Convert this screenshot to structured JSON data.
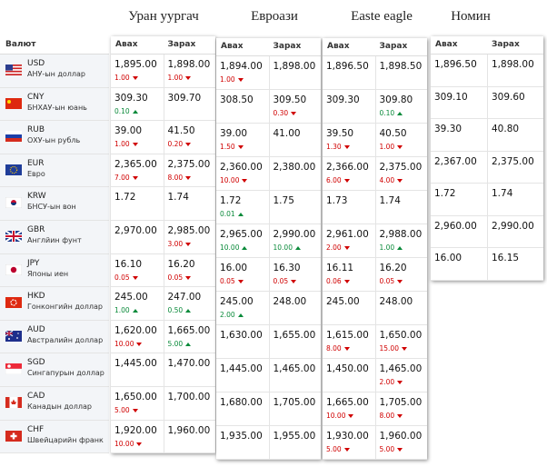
{
  "currency_header": "Валют",
  "sub_headers": [
    "Авах",
    "Зарах"
  ],
  "currencies": [
    {
      "code": "USD",
      "name": "АНУ-ын доллар"
    },
    {
      "code": "CNY",
      "name": "БНХАУ-ын юань"
    },
    {
      "code": "RUB",
      "name": "ОХУ-ын рубль"
    },
    {
      "code": "EUR",
      "name": "Евро"
    },
    {
      "code": "KRW",
      "name": "БНСУ-ын вон"
    },
    {
      "code": "GBR",
      "name": "Англйин фунт"
    },
    {
      "code": "JPY",
      "name": "Японы иен"
    },
    {
      "code": "HKD",
      "name": "Гонконгийн доллар"
    },
    {
      "code": "AUD",
      "name": "Австралийн доллар"
    },
    {
      "code": "SGD",
      "name": "Сингапурын доллар"
    },
    {
      "code": "CAD",
      "name": "Канадын доллар"
    },
    {
      "code": "CHF",
      "name": "Швейцарийн франк"
    }
  ],
  "banks": [
    {
      "name": "Уран уургач",
      "rows": [
        {
          "buy": "1,895.00",
          "buy_change": {
            "value": "1.00",
            "trend": "down"
          },
          "sell": "1,898.00",
          "sell_change": {
            "value": "1.00",
            "trend": "down"
          }
        },
        {
          "buy": "309.30",
          "buy_change": {
            "value": "0.10",
            "trend": "up"
          },
          "sell": "309.70",
          "sell_change": null
        },
        {
          "buy": "39.00",
          "buy_change": {
            "value": "1.00",
            "trend": "down"
          },
          "sell": "41.50",
          "sell_change": {
            "value": "0.20",
            "trend": "down"
          }
        },
        {
          "buy": "2,365.00",
          "buy_change": {
            "value": "7.00",
            "trend": "down"
          },
          "sell": "2,375.00",
          "sell_change": {
            "value": "8.00",
            "trend": "down"
          }
        },
        {
          "buy": "1.72",
          "buy_change": null,
          "sell": "1.74",
          "sell_change": null
        },
        {
          "buy": "2,970.00",
          "buy_change": null,
          "sell": "2,985.00",
          "sell_change": {
            "value": "3.00",
            "trend": "down"
          }
        },
        {
          "buy": "16.10",
          "buy_change": {
            "value": "0.05",
            "trend": "down"
          },
          "sell": "16.20",
          "sell_change": {
            "value": "0.05",
            "trend": "down"
          }
        },
        {
          "buy": "245.00",
          "buy_change": {
            "value": "1.00",
            "trend": "up"
          },
          "sell": "247.00",
          "sell_change": {
            "value": "0.50",
            "trend": "up"
          }
        },
        {
          "buy": "1,620.00",
          "buy_change": {
            "value": "10.00",
            "trend": "down"
          },
          "sell": "1,665.00",
          "sell_change": {
            "value": "5.00",
            "trend": "up"
          }
        },
        {
          "buy": "1,445.00",
          "buy_change": null,
          "sell": "1,470.00",
          "sell_change": null
        },
        {
          "buy": "1,650.00",
          "buy_change": {
            "value": "5.00",
            "trend": "down"
          },
          "sell": "1,700.00",
          "sell_change": null
        },
        {
          "buy": "1,920.00",
          "buy_change": {
            "value": "10.00",
            "trend": "down"
          },
          "sell": "1,960.00",
          "sell_change": null
        }
      ]
    },
    {
      "name": "Евроази",
      "rows": [
        {
          "buy": "1,894.00",
          "buy_change": {
            "value": "1.00",
            "trend": "down"
          },
          "sell": "1,898.00",
          "sell_change": null
        },
        {
          "buy": "308.50",
          "buy_change": null,
          "sell": "309.50",
          "sell_change": {
            "value": "0.30",
            "trend": "down"
          }
        },
        {
          "buy": "39.00",
          "buy_change": {
            "value": "1.50",
            "trend": "down"
          },
          "sell": "41.00",
          "sell_change": null
        },
        {
          "buy": "2,360.00",
          "buy_change": {
            "value": "10.00",
            "trend": "down"
          },
          "sell": "2,380.00",
          "sell_change": null
        },
        {
          "buy": "1.72",
          "buy_change": {
            "value": "0.01",
            "trend": "up"
          },
          "sell": "1.75",
          "sell_change": null
        },
        {
          "buy": "2,965.00",
          "buy_change": {
            "value": "10.00",
            "trend": "up"
          },
          "sell": "2,990.00",
          "sell_change": {
            "value": "10.00",
            "trend": "up"
          }
        },
        {
          "buy": "16.00",
          "buy_change": {
            "value": "0.05",
            "trend": "down"
          },
          "sell": "16.30",
          "sell_change": {
            "value": "0.05",
            "trend": "down"
          }
        },
        {
          "buy": "245.00",
          "buy_change": {
            "value": "2.00",
            "trend": "up"
          },
          "sell": "248.00",
          "sell_change": null
        },
        {
          "buy": "1,630.00",
          "buy_change": null,
          "sell": "1,655.00",
          "sell_change": null
        },
        {
          "buy": "1,445.00",
          "buy_change": null,
          "sell": "1,465.00",
          "sell_change": null
        },
        {
          "buy": "1,680.00",
          "buy_change": null,
          "sell": "1,705.00",
          "sell_change": null
        },
        {
          "buy": "1,935.00",
          "buy_change": null,
          "sell": "1,955.00",
          "sell_change": null
        }
      ]
    },
    {
      "name": "Easte eagle",
      "rows": [
        {
          "buy": "1,896.50",
          "buy_change": null,
          "sell": "1,898.50",
          "sell_change": null
        },
        {
          "buy": "309.30",
          "buy_change": null,
          "sell": "309.80",
          "sell_change": {
            "value": "0.10",
            "trend": "up"
          }
        },
        {
          "buy": "39.50",
          "buy_change": {
            "value": "1.30",
            "trend": "down"
          },
          "sell": "40.50",
          "sell_change": {
            "value": "1.00",
            "trend": "down"
          }
        },
        {
          "buy": "2,366.00",
          "buy_change": {
            "value": "6.00",
            "trend": "down"
          },
          "sell": "2,375.00",
          "sell_change": {
            "value": "4.00",
            "trend": "down"
          }
        },
        {
          "buy": "1.73",
          "buy_change": null,
          "sell": "1.74",
          "sell_change": null
        },
        {
          "buy": "2,961.00",
          "buy_change": {
            "value": "2.00",
            "trend": "down"
          },
          "sell": "2,988.00",
          "sell_change": {
            "value": "1.00",
            "trend": "up"
          }
        },
        {
          "buy": "16.11",
          "buy_change": {
            "value": "0.06",
            "trend": "down"
          },
          "sell": "16.20",
          "sell_change": {
            "value": "0.05",
            "trend": "down"
          }
        },
        {
          "buy": "245.00",
          "buy_change": null,
          "sell": "248.00",
          "sell_change": null
        },
        {
          "buy": "1,615.00",
          "buy_change": {
            "value": "8.00",
            "trend": "down"
          },
          "sell": "1,650.00",
          "sell_change": {
            "value": "15.00",
            "trend": "down"
          }
        },
        {
          "buy": "1,450.00",
          "buy_change": null,
          "sell": "1,465.00",
          "sell_change": {
            "value": "2.00",
            "trend": "down"
          }
        },
        {
          "buy": "1,665.00",
          "buy_change": {
            "value": "10.00",
            "trend": "down"
          },
          "sell": "1,705.00",
          "sell_change": {
            "value": "8.00",
            "trend": "down"
          }
        },
        {
          "buy": "1,930.00",
          "buy_change": {
            "value": "5.00",
            "trend": "down"
          },
          "sell": "1,960.00",
          "sell_change": {
            "value": "5.00",
            "trend": "down"
          }
        }
      ]
    },
    {
      "name": "Номин",
      "rows": [
        {
          "buy": "1,896.50",
          "buy_change": null,
          "sell": "1,898.00",
          "sell_change": null
        },
        {
          "buy": "309.10",
          "buy_change": null,
          "sell": "309.60",
          "sell_change": null
        },
        {
          "buy": "39.30",
          "buy_change": null,
          "sell": "40.80",
          "sell_change": null
        },
        {
          "buy": "2,367.00",
          "buy_change": null,
          "sell": "2,375.00",
          "sell_change": null
        },
        {
          "buy": "1.72",
          "buy_change": null,
          "sell": "1.74",
          "sell_change": null
        },
        {
          "buy": "2,960.00",
          "buy_change": null,
          "sell": "2,990.00",
          "sell_change": null
        },
        {
          "buy": "16.00",
          "buy_change": null,
          "sell": "16.15",
          "sell_change": null
        }
      ]
    }
  ]
}
